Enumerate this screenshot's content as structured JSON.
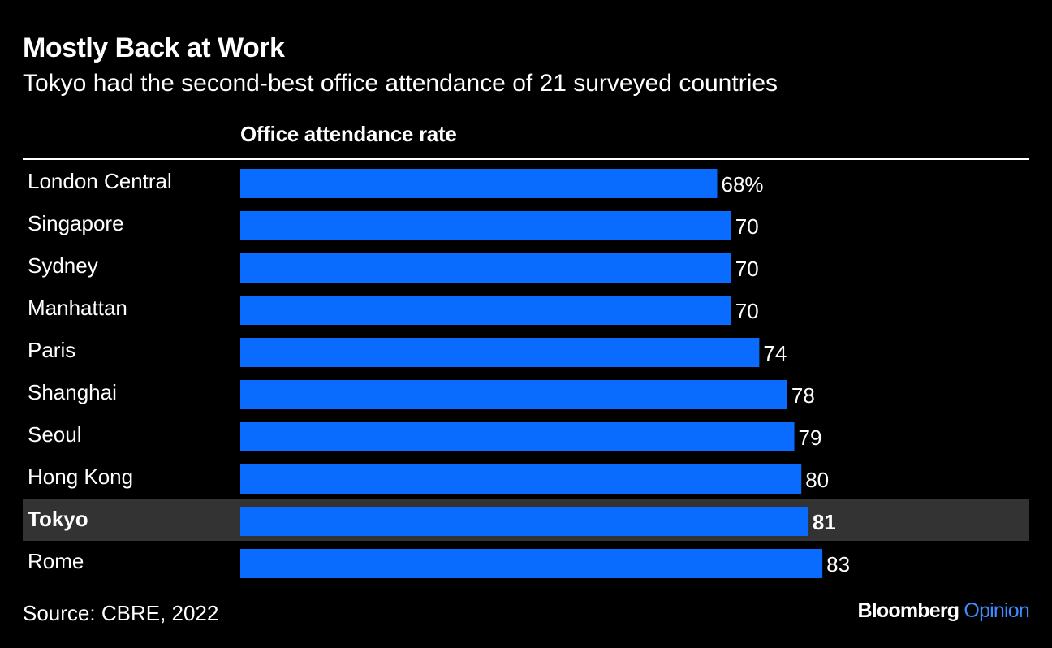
{
  "header": {
    "title": "Mostly Back at Work",
    "subtitle": "Tokyo had the second-best office attendance of 21 surveyed countries"
  },
  "chart_data": {
    "type": "bar",
    "orientation": "horizontal",
    "column_header": "Office attendance rate",
    "categories": [
      "London Central",
      "Singapore",
      "Sydney",
      "Manhattan",
      "Paris",
      "Shanghai",
      "Seoul",
      "Hong Kong",
      "Tokyo",
      "Rome"
    ],
    "values": [
      68,
      70,
      70,
      70,
      74,
      78,
      79,
      80,
      81,
      83
    ],
    "value_labels": [
      "68%",
      "70",
      "70",
      "70",
      "74",
      "78",
      "79",
      "80",
      "81",
      "83"
    ],
    "highlighted_category": "Tokyo",
    "xlim": [
      0,
      100
    ],
    "grid": false,
    "legend": "none"
  },
  "colors": {
    "background": "#000000",
    "bar": "#0a6cff",
    "highlight_row": "#333333",
    "text": "#ffffff",
    "accent": "#3d8bff"
  },
  "footer": {
    "source": "Source: CBRE, 2022",
    "brand_name": "Bloomberg",
    "brand_accent": "Opinion"
  }
}
